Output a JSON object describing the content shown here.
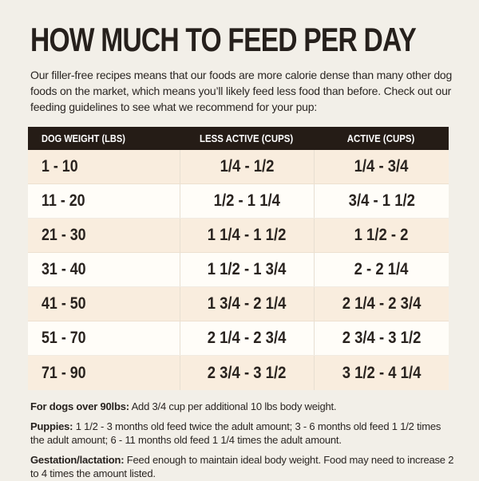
{
  "page": {
    "title": "HOW MUCH TO FEED PER DAY",
    "intro": "Our filler-free recipes means that our foods are more calorie dense than many other dog foods on the market, which means you’ll likely feed less food than before. Check out our feeding guidelines to see what we recommend for your pup:"
  },
  "table": {
    "columns": [
      "DOG WEIGHT (LBS)",
      "LESS ACTIVE (CUPS)",
      "ACTIVE (CUPS)"
    ],
    "rows": [
      {
        "weight": "1 - 10",
        "less_active": "1/4 - 1/2",
        "active": "1/4 - 3/4"
      },
      {
        "weight": "11 - 20",
        "less_active": "1/2 - 1 1/4",
        "active": "3/4 - 1 1/2"
      },
      {
        "weight": "21 - 30",
        "less_active": "1 1/4 - 1 1/2",
        "active": "1 1/2 - 2"
      },
      {
        "weight": "31 - 40",
        "less_active": "1 1/2 - 1 3/4",
        "active": "2 - 2 1/4"
      },
      {
        "weight": "41 - 50",
        "less_active": "1 3/4 - 2 1/4",
        "active": "2 1/4 - 2 3/4"
      },
      {
        "weight": "51 - 70",
        "less_active": "2 1/4 - 2 3/4",
        "active": "2 3/4 - 3 1/2"
      },
      {
        "weight": "71 - 90",
        "less_active": "2 3/4 - 3 1/2",
        "active": "3 1/2 - 4 1/4"
      }
    ]
  },
  "notes": [
    {
      "label": "For dogs over 90lbs:",
      "text": "Add 3/4 cup per additional 10 lbs body weight."
    },
    {
      "label": "Puppies:",
      "text": "1 1/2 - 3 months old feed twice the adult amount; 3 - 6 months old feed 1 1/2 times the adult amount; 6 - 11 months old feed 1 1/4 times the adult amount."
    },
    {
      "label": "Gestation/lactation:",
      "text": "Feed enough to maintain ideal body weight. Food may need to increase 2 to 4 times the amount listed."
    }
  ],
  "colors": {
    "page_background": "#f2efe8",
    "header_bar": "#251c16",
    "header_text": "#ffffff",
    "row_beige": "#f9edde",
    "row_white": "#fffdf8",
    "ink": "#26211e",
    "column_divider": "#e7dfd2"
  }
}
